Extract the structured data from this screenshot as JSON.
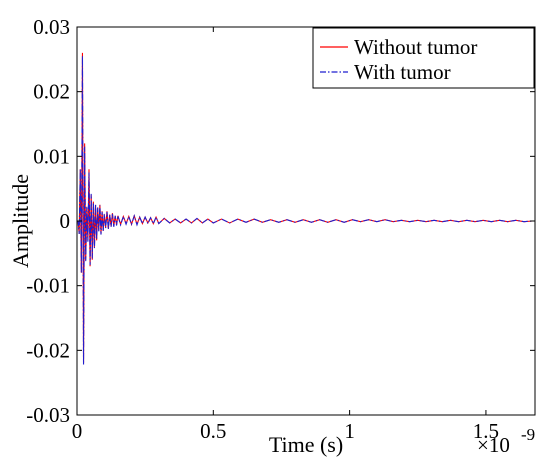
{
  "chart_data": {
    "type": "line",
    "title": "",
    "xlabel": "Time (s)",
    "ylabel": "Amplitude",
    "x_multiplier_label": "×10",
    "x_multiplier_exponent": "-9",
    "xlim": [
      0,
      1.68
    ],
    "ylim": [
      -0.03,
      0.03
    ],
    "x_ticks": [
      {
        "value": 0,
        "label": "0"
      },
      {
        "value": 0.5,
        "label": "0.5"
      },
      {
        "value": 1,
        "label": "1"
      },
      {
        "value": 1.5,
        "label": "1.5"
      }
    ],
    "y_ticks": [
      {
        "value": 0.03,
        "label": "0.03"
      },
      {
        "value": 0.02,
        "label": "0.02"
      },
      {
        "value": 0.01,
        "label": "0.01"
      },
      {
        "value": 0,
        "label": "0"
      },
      {
        "value": -0.01,
        "label": "-0.01"
      },
      {
        "value": -0.02,
        "label": "-0.02"
      },
      {
        "value": -0.03,
        "label": "-0.03"
      }
    ],
    "grid": false,
    "legend_position": "top-right",
    "series": [
      {
        "name": "Without tumor",
        "color": "#ff0000",
        "style": "solid",
        "x": [
          0,
          0.004,
          0.008,
          0.012,
          0.016,
          0.02,
          0.024,
          0.028,
          0.032,
          0.036,
          0.04,
          0.044,
          0.048,
          0.052,
          0.056,
          0.06,
          0.064,
          0.068,
          0.072,
          0.076,
          0.08,
          0.084,
          0.088,
          0.092,
          0.096,
          0.1,
          0.105,
          0.11,
          0.115,
          0.12,
          0.125,
          0.13,
          0.135,
          0.14,
          0.145,
          0.15,
          0.16,
          0.17,
          0.18,
          0.19,
          0.2,
          0.21,
          0.22,
          0.23,
          0.24,
          0.25,
          0.26,
          0.27,
          0.28,
          0.29,
          0.3,
          0.32,
          0.34,
          0.36,
          0.38,
          0.4,
          0.42,
          0.44,
          0.46,
          0.48,
          0.5,
          0.53,
          0.56,
          0.59,
          0.62,
          0.65,
          0.68,
          0.71,
          0.74,
          0.77,
          0.8,
          0.83,
          0.86,
          0.89,
          0.92,
          0.95,
          0.98,
          1.01,
          1.04,
          1.07,
          1.1,
          1.13,
          1.16,
          1.19,
          1.22,
          1.25,
          1.28,
          1.31,
          1.34,
          1.37,
          1.4,
          1.43,
          1.46,
          1.49,
          1.52,
          1.55,
          1.58,
          1.61,
          1.64,
          1.67
        ],
        "y": [
          0,
          0,
          -0.002,
          0.008,
          -0.008,
          0.026,
          -0.022,
          0.012,
          -0.006,
          0.002,
          -0.003,
          0.008,
          -0.007,
          0.004,
          -0.006,
          0.003,
          -0.004,
          0.0025,
          -0.003,
          0.002,
          -0.0015,
          0.0025,
          -0.002,
          0.0015,
          -0.0015,
          0.001,
          -0.001,
          0.0015,
          -0.0012,
          0.001,
          -0.0008,
          0.0012,
          -0.0008,
          0.0008,
          -0.0006,
          0.0008,
          -0.0005,
          0.0007,
          -0.0004,
          0.0007,
          -0.0005,
          0.0008,
          -0.0005,
          0.0006,
          -0.0004,
          0.0006,
          -0.0003,
          0.0005,
          -0.0004,
          0.0006,
          -0.0004,
          0.0004,
          -0.0003,
          0.0003,
          -0.0003,
          0.0003,
          -0.0003,
          0.0004,
          -0.0003,
          0.0003,
          -0.0003,
          0.0003,
          -0.0003,
          0.0003,
          -0.0002,
          0.0003,
          -0.0002,
          0.0002,
          -0.0002,
          0.0002,
          -0.0002,
          0.0002,
          -0.0002,
          0.0002,
          -0.0002,
          0.0002,
          -0.0002,
          0.0002,
          -0.0001,
          0.0002,
          -0.0001,
          0.0002,
          -0.0001,
          0.0001,
          -0.0001,
          0.0001,
          -0.0001,
          0.0001,
          -0.0001,
          0.0001,
          -0.0001,
          0.0001,
          -0.0001,
          0.0001,
          -0.0001,
          0.0001,
          -0.0001,
          0.0001,
          -0.0001,
          0
        ]
      },
      {
        "name": "With tumor",
        "color": "#1f1fcf",
        "style": "dashdot",
        "x": [
          0,
          0.004,
          0.008,
          0.012,
          0.016,
          0.02,
          0.024,
          0.028,
          0.032,
          0.036,
          0.04,
          0.044,
          0.048,
          0.052,
          0.056,
          0.06,
          0.064,
          0.068,
          0.072,
          0.076,
          0.08,
          0.084,
          0.088,
          0.092,
          0.096,
          0.1,
          0.105,
          0.11,
          0.115,
          0.12,
          0.125,
          0.13,
          0.135,
          0.14,
          0.145,
          0.15,
          0.16,
          0.17,
          0.18,
          0.19,
          0.2,
          0.21,
          0.22,
          0.23,
          0.24,
          0.25,
          0.26,
          0.27,
          0.28,
          0.29,
          0.3,
          0.32,
          0.34,
          0.36,
          0.38,
          0.4,
          0.42,
          0.44,
          0.46,
          0.48,
          0.5,
          0.53,
          0.56,
          0.59,
          0.62,
          0.65,
          0.68,
          0.71,
          0.74,
          0.77,
          0.8,
          0.83,
          0.86,
          0.89,
          0.92,
          0.95,
          0.98,
          1.01,
          1.04,
          1.07,
          1.1,
          1.13,
          1.16,
          1.19,
          1.22,
          1.25,
          1.28,
          1.31,
          1.34,
          1.37,
          1.4,
          1.43,
          1.46,
          1.49,
          1.52,
          1.55,
          1.58,
          1.61,
          1.64,
          1.67
        ],
        "y": [
          0,
          0,
          -0.002,
          0.008,
          -0.008,
          0.0255,
          -0.0222,
          0.0115,
          -0.0062,
          0.0022,
          -0.0032,
          0.0075,
          -0.0068,
          0.0042,
          -0.0058,
          0.0028,
          -0.0042,
          0.0026,
          -0.0028,
          0.0021,
          -0.0016,
          0.0024,
          -0.0021,
          0.0014,
          -0.0016,
          0.0011,
          -0.0011,
          0.0014,
          -0.0013,
          0.001,
          -0.0009,
          0.0011,
          -0.0009,
          0.0008,
          -0.0007,
          0.0008,
          -0.0006,
          0.0007,
          -0.0005,
          0.0007,
          -0.0005,
          0.0008,
          -0.0006,
          0.0006,
          -0.0004,
          0.0006,
          -0.0004,
          0.0005,
          -0.0004,
          0.0006,
          -0.0004,
          0.0004,
          -0.0003,
          0.0003,
          -0.0003,
          0.0003,
          -0.0003,
          0.0004,
          -0.0003,
          0.0003,
          -0.0003,
          0.0003,
          -0.0003,
          0.0003,
          -0.0002,
          0.0003,
          -0.0002,
          0.0002,
          -0.0002,
          0.0002,
          -0.0002,
          0.0002,
          -0.0002,
          0.0002,
          -0.0002,
          0.0002,
          -0.0002,
          0.0002,
          -0.0001,
          0.0002,
          -0.0001,
          0.0002,
          -0.0001,
          0.0001,
          -0.0001,
          0.0001,
          -0.0001,
          0.0001,
          -0.0001,
          0.0001,
          -0.0001,
          0.0001,
          -0.0001,
          0.0001,
          -0.0001,
          0.0001,
          -0.0001,
          0.0001,
          -0.0001,
          0
        ]
      }
    ]
  }
}
